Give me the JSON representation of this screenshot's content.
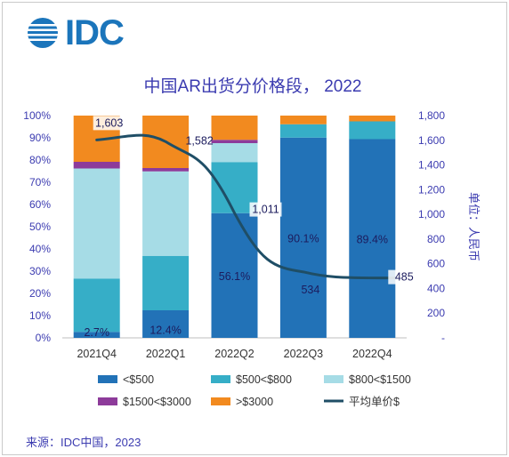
{
  "logo": {
    "text": "IDC"
  },
  "source": "来源：IDC中国，2023",
  "colors": {
    "lt500": "#2272b7",
    "500to800": "#36aec7",
    "800to1500": "#a6dce6",
    "1500to3000": "#8d3b9a",
    "gt3000": "#f28a1f",
    "avg_line": "#1f4e66",
    "axis_text": "#3b3bb0"
  },
  "chart_data": {
    "type": "bar",
    "stacked": true,
    "title": "中国AR出货分价格段， 2022",
    "categories": [
      "2021Q4",
      "2022Q1",
      "2022Q2",
      "2022Q3",
      "2022Q4"
    ],
    "ylabel_right": "单位：人民币",
    "ylim": [
      0,
      100
    ],
    "y_ticks": [
      "0%",
      "10%",
      "20%",
      "30%",
      "40%",
      "50%",
      "60%",
      "70%",
      "80%",
      "90%",
      "100%"
    ],
    "ylim_right": [
      0,
      1800
    ],
    "y_ticks_right": [
      "-",
      "200",
      "400",
      "600",
      "800",
      "1,000",
      "1,200",
      "1,400",
      "1,600",
      "1,800"
    ],
    "series": [
      {
        "name": "<$500",
        "color_key": "lt500",
        "values": [
          2.7,
          12.4,
          56.1,
          90.1,
          89.4
        ],
        "labels": [
          "2.7%",
          "12.4%",
          "56.1%",
          "90.1%",
          "89.4%"
        ]
      },
      {
        "name": "$500<$800",
        "color_key": "500to800",
        "values": [
          24.0,
          24.5,
          23.0,
          6.0,
          8.0
        ]
      },
      {
        "name": "$800<$1500",
        "color_key": "800to1500",
        "values": [
          49.5,
          38.0,
          8.5,
          0,
          0
        ]
      },
      {
        "name": "$1500<$3000",
        "color_key": "1500to3000",
        "values": [
          3.0,
          1.5,
          1.5,
          0,
          0
        ]
      },
      {
        "name": ">$3000",
        "color_key": "gt3000",
        "values": [
          20.8,
          23.6,
          10.9,
          3.9,
          2.6
        ]
      }
    ],
    "line": {
      "name": "平均单价$",
      "color_key": "avg_line",
      "values": [
        1603,
        1582,
        1011,
        534,
        485
      ],
      "labels": [
        "1,603",
        "1,582",
        "1,011",
        "534",
        "485"
      ]
    },
    "legend": "bottom"
  }
}
